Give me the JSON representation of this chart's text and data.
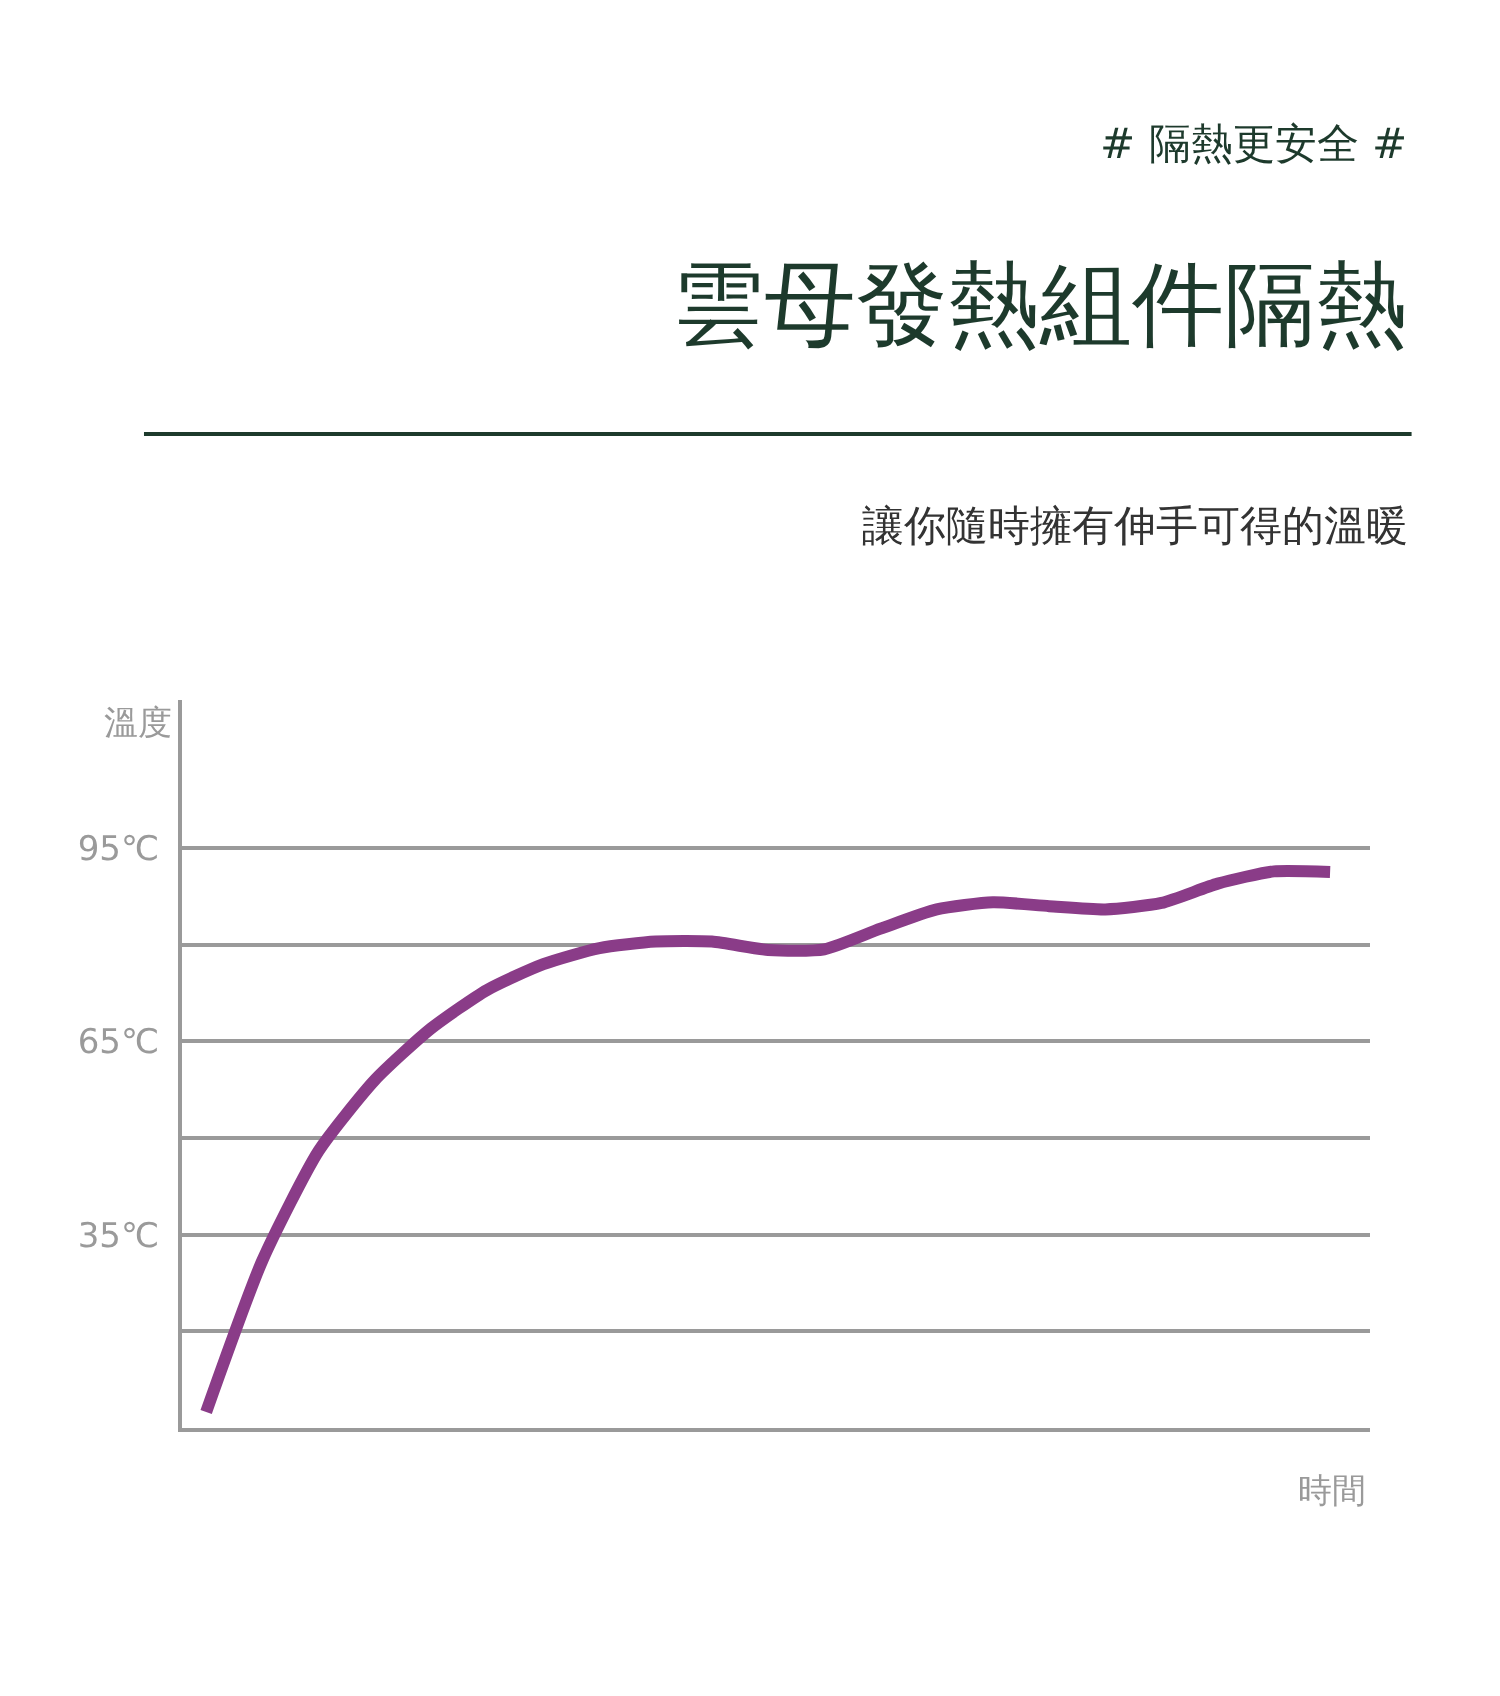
{
  "chart_data": {
    "type": "line",
    "title": "雲母發熱組件隔熱",
    "subtitle": "讓你隨時擁有伸手可得的溫暖",
    "annotations": [
      "# 隔熱更安全 #"
    ],
    "xlabel": "時間",
    "ylabel": "溫度",
    "categories": [
      null,
      null,
      null,
      null,
      null,
      null,
      null,
      null,
      null,
      null,
      null,
      null,
      null,
      null,
      null,
      null,
      null,
      null,
      null,
      null,
      null
    ],
    "series": [
      {
        "color": "#8a3c88",
        "values": [
          7.5,
          31,
          48,
          59,
          67,
          73,
          77,
          79.5,
          80.5,
          80.5,
          79.2,
          79.3,
          82.5,
          85.5,
          86.6,
          86,
          85.5,
          86.5,
          89.5,
          91.4,
          91.3
        ]
      }
    ],
    "ylim": [
      5,
      118
    ],
    "yticks": [
      {
        "value": 95,
        "label": "95℃"
      },
      {
        "value": 80,
        "label": null
      },
      {
        "value": 65,
        "label": "65℃"
      },
      {
        "value": 50,
        "label": null
      },
      {
        "value": 35,
        "label": "35℃"
      },
      {
        "value": 20,
        "label": null
      }
    ],
    "grid": "y",
    "tick_labels": "y",
    "marker": "none",
    "line_style": "solid",
    "legend": false
  }
}
